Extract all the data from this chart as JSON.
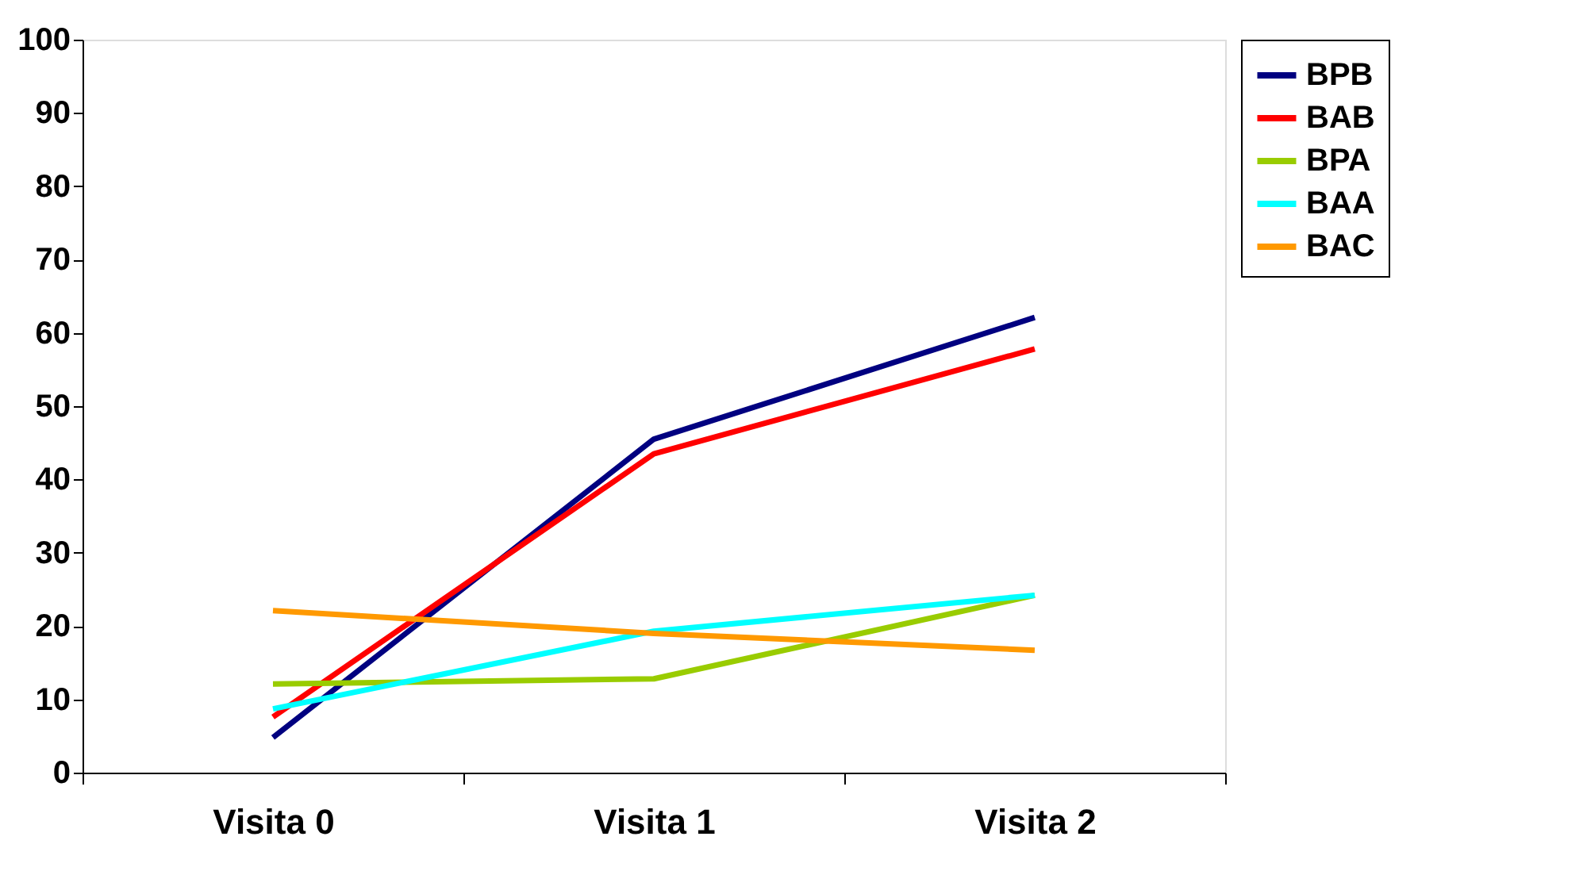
{
  "chart_data": {
    "type": "line",
    "categories": [
      "Visita 0",
      "Visita 1",
      "Visita 2"
    ],
    "series": [
      {
        "name": "BPB",
        "color": "#000080",
        "values": [
          4.8,
          45.5,
          62.1
        ]
      },
      {
        "name": "BAB",
        "color": "#ff0000",
        "values": [
          7.6,
          43.5,
          57.8
        ]
      },
      {
        "name": "BPA",
        "color": "#99cc00",
        "values": [
          12.1,
          12.8,
          24.2
        ]
      },
      {
        "name": "BAA",
        "color": "#00ffff",
        "values": [
          8.7,
          19.3,
          24.2
        ]
      },
      {
        "name": "BAC",
        "color": "#ff9900",
        "values": [
          22.1,
          19.0,
          16.7
        ]
      }
    ],
    "ylim": [
      0,
      100
    ],
    "yticks": [
      0,
      10,
      20,
      30,
      40,
      50,
      60,
      70,
      80,
      90,
      100
    ],
    "grid": false,
    "legend": "right",
    "marker": "none",
    "line_style": "solid"
  }
}
